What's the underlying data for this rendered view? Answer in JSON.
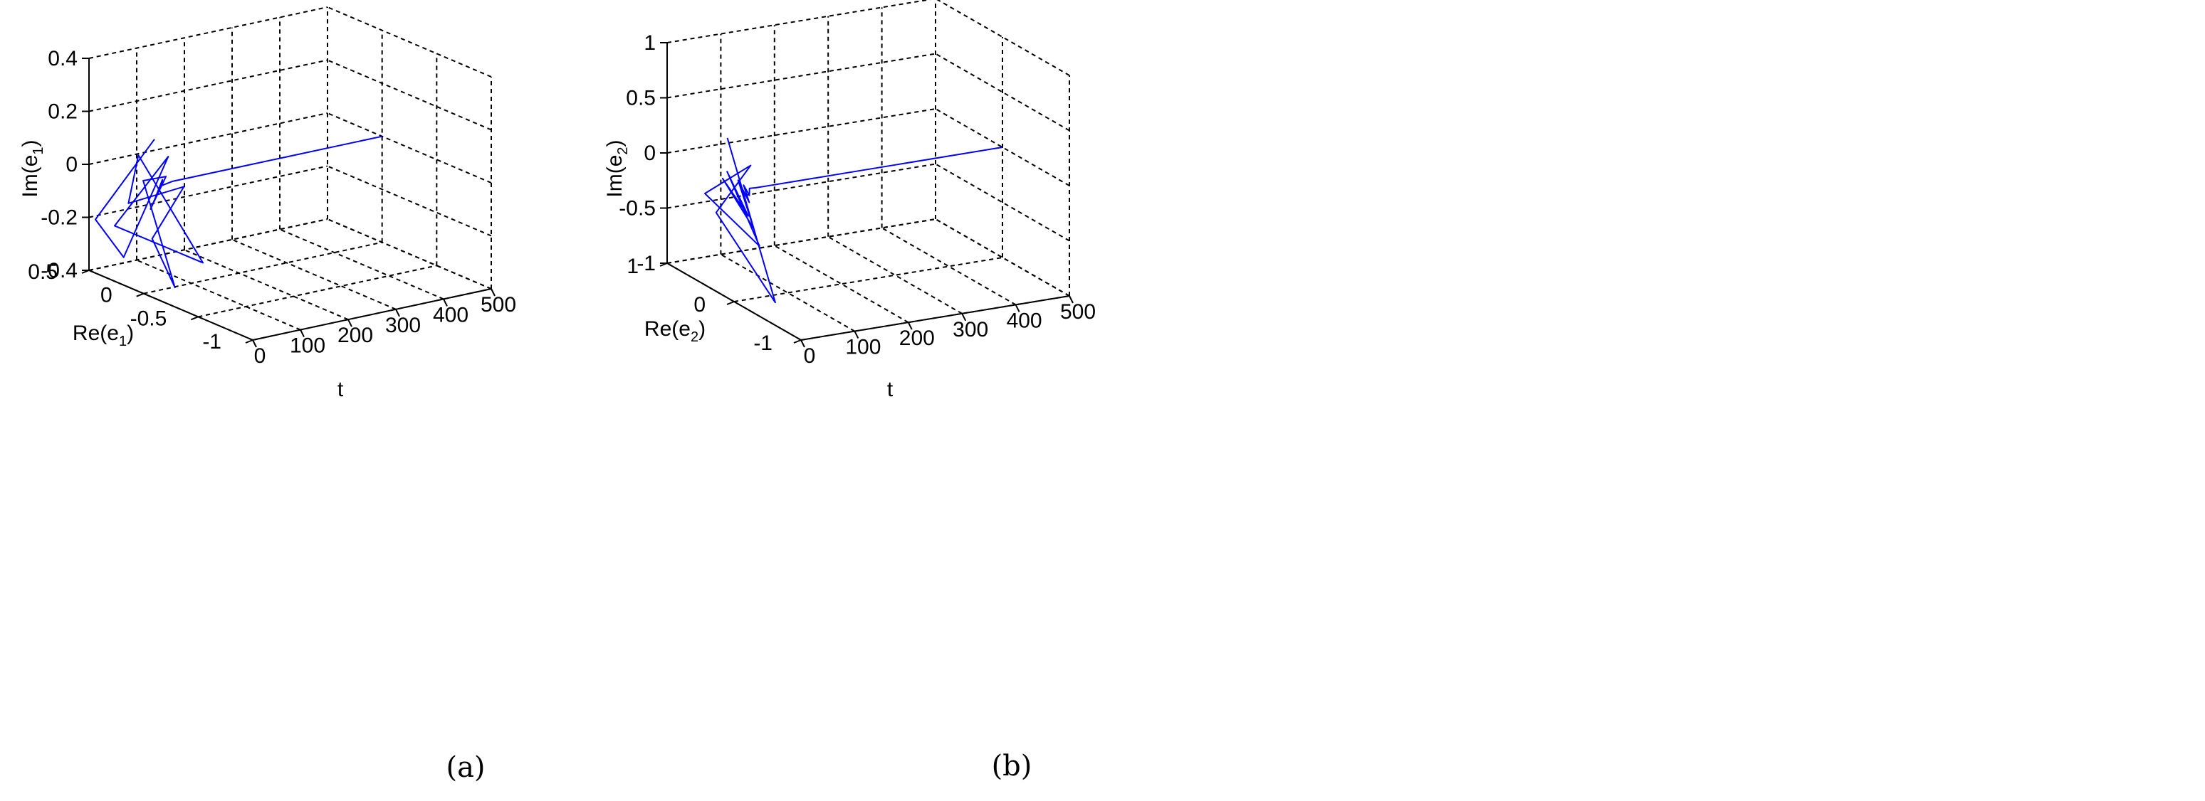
{
  "chart_data": [
    {
      "type": "line3d",
      "panel_label": "(a)",
      "x": {
        "label": "t",
        "ticks": [
          "0",
          "100",
          "200",
          "300",
          "400",
          "500"
        ],
        "lim": [
          0,
          500
        ]
      },
      "y": {
        "label": "Re(e",
        "label_sub": "1",
        "label_close": ")",
        "ticks": [
          "-1",
          "-0.5",
          "0",
          "0.5"
        ],
        "lim": [
          -1,
          0.5
        ]
      },
      "z": {
        "label": "Im(e",
        "label_sub": "1",
        "label_close": ")",
        "ticks": [
          "-0.4",
          "-0.2",
          "0",
          "0.2",
          "0.4"
        ],
        "lim": [
          -0.4,
          0.4
        ]
      },
      "grid": true,
      "series": [
        {
          "color": "#0000ff",
          "points": [
            [
              0,
              -0.1,
              0.2
            ],
            [
              2,
              0.45,
              -0.2
            ],
            [
              4,
              0.2,
              -0.3
            ],
            [
              6,
              -0.2,
              0.15
            ],
            [
              8,
              0.3,
              -0.2
            ],
            [
              10,
              -0.5,
              -0.2
            ],
            [
              12,
              0.1,
              0.1
            ],
            [
              14,
              0.2,
              -0.1
            ],
            [
              16,
              -0.3,
              0.05
            ],
            [
              18,
              0.0,
              -0.2
            ],
            [
              20,
              -0.2,
              -0.35
            ],
            [
              22,
              0.1,
              0.0
            ],
            [
              24,
              -0.1,
              0.05
            ],
            [
              26,
              0.05,
              -0.1
            ],
            [
              28,
              -0.05,
              0.02
            ],
            [
              30,
              0.02,
              -0.05
            ],
            [
              35,
              -0.02,
              0.02
            ],
            [
              40,
              0.01,
              -0.01
            ],
            [
              60,
              0.0,
              0.0
            ],
            [
              120,
              0.0,
              0.0
            ],
            [
              200,
              0.0,
              0.0
            ],
            [
              300,
              0.0,
              0.0
            ],
            [
              400,
              0.0,
              0.0
            ],
            [
              500,
              0.0,
              0.0
            ]
          ]
        }
      ]
    },
    {
      "type": "line3d",
      "panel_label": "(b)",
      "x": {
        "label": "t",
        "ticks": [
          "0",
          "100",
          "200",
          "300",
          "400",
          "500"
        ],
        "lim": [
          0,
          500
        ]
      },
      "y": {
        "label": "Re(e",
        "label_sub": "2",
        "label_close": ")",
        "ticks": [
          "-1",
          "0",
          "1"
        ],
        "lim": [
          -1,
          1
        ]
      },
      "z": {
        "label": "Im(e",
        "label_sub": "2",
        "label_close": ")",
        "ticks": [
          "-1",
          "-0.5",
          "0",
          "0.5",
          "1"
        ],
        "lim": [
          -1,
          1
        ]
      },
      "grid": true,
      "series": [
        {
          "color": "#0000ff",
          "points": [
            [
              0,
              0.1,
              0.45
            ],
            [
              2,
              -0.6,
              -0.8
            ],
            [
              4,
              0.3,
              -0.3
            ],
            [
              6,
              -0.2,
              0.3
            ],
            [
              8,
              0.5,
              -0.2
            ],
            [
              10,
              -0.3,
              -0.4
            ],
            [
              12,
              0.2,
              0.1
            ],
            [
              14,
              -0.1,
              -0.2
            ],
            [
              16,
              0.3,
              0.0
            ],
            [
              18,
              -0.15,
              -0.3
            ],
            [
              20,
              0.1,
              0.05
            ],
            [
              22,
              -0.05,
              -0.1
            ],
            [
              24,
              0.05,
              0.02
            ],
            [
              26,
              -0.02,
              -0.05
            ],
            [
              30,
              0.01,
              0.0
            ],
            [
              40,
              0.0,
              0.0
            ],
            [
              60,
              0.0,
              0.0
            ],
            [
              120,
              0.0,
              0.0
            ],
            [
              200,
              0.0,
              0.0
            ],
            [
              300,
              0.0,
              0.0
            ],
            [
              400,
              0.0,
              0.0
            ],
            [
              500,
              0.0,
              0.0
            ]
          ]
        }
      ]
    }
  ]
}
